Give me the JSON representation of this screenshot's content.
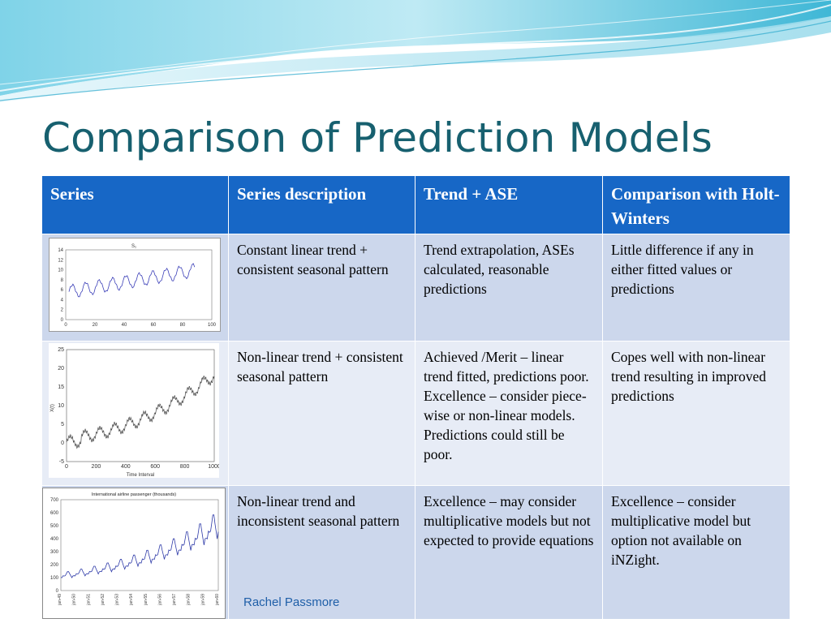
{
  "slide": {
    "title": "Comparison of Prediction Models",
    "credit": "Rachel Passmore"
  },
  "colors": {
    "title": "#17606f",
    "header_bg": "#1767c6",
    "row_bg_a": "#ccd7ec",
    "row_bg_b": "#e7ecf6"
  },
  "table": {
    "headers": [
      "Series",
      "Series description",
      "Trend + ASE",
      "Comparison with Holt-Winters"
    ],
    "rows": [
      {
        "description": "Constant linear trend + consistent seasonal pattern",
        "trend_ase": "Trend extrapolation, ASEs calculated, reasonable predictions",
        "holt_winters": "Little difference if any in either fitted values or predictions"
      },
      {
        "description": "Non-linear  trend + consistent seasonal pattern",
        "trend_ase": "Achieved /Merit – linear trend fitted, predictions poor.\nExcellence – consider piece-wise or non-linear models. Predictions could still be poor.",
        "holt_winters": "Copes well with non-linear  trend resulting in improved predictions"
      },
      {
        "description": "Non-linear  trend and inconsistent seasonal pattern",
        "trend_ase": "Excellence – may consider multiplicative models but not expected to provide equations",
        "holt_winters": "Excellence – consider multiplicative model but option not available on iNZight."
      }
    ]
  },
  "charts": [
    {
      "title": "S₁",
      "xticks": [
        "0",
        "20",
        "40",
        "60",
        "80",
        "100"
      ],
      "yticks": [
        "0",
        "2",
        "4",
        "6",
        "8",
        "10",
        "12",
        "14"
      ],
      "series_color": "#3b3fb8"
    },
    {
      "xlabel": "Time Interval",
      "ylabel": "X(t)",
      "xticks": [
        "0",
        "200",
        "400",
        "600",
        "800",
        "1000"
      ],
      "yticks": [
        "-5",
        "0",
        "5",
        "10",
        "15",
        "20",
        "25"
      ],
      "series_color": "#444444"
    },
    {
      "title": "International airline passenger (thousands)",
      "xticks": [
        "jan-49",
        "jan-50",
        "jan-51",
        "jan-52",
        "jan-53",
        "jan-54",
        "jan-55",
        "jan-56",
        "jan-57",
        "jan-58",
        "jan-59",
        "jan-60"
      ],
      "yticks": [
        "0",
        "100",
        "200",
        "300",
        "400",
        "500",
        "600",
        "700"
      ],
      "series_color": "#2e3aa8"
    }
  ]
}
